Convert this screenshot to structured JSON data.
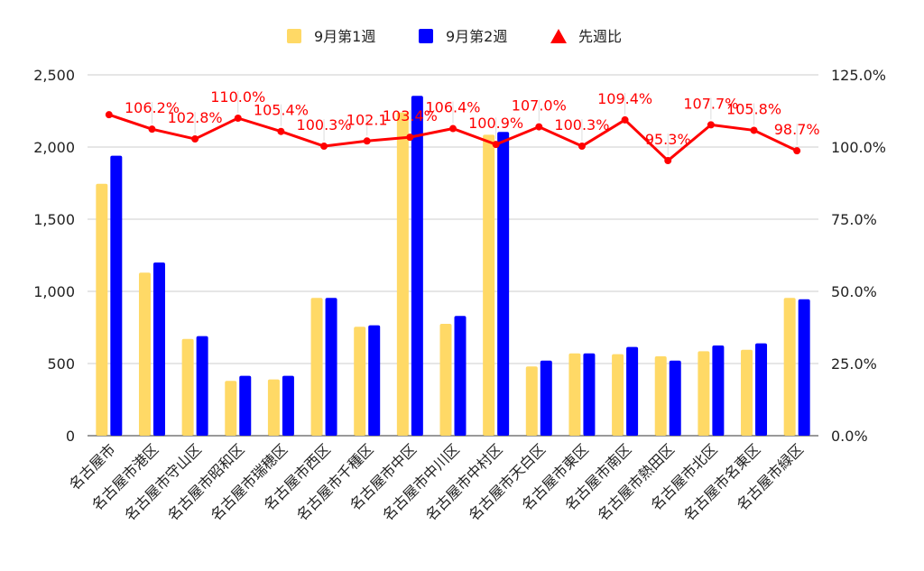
{
  "chart_data": {
    "type": "bar",
    "categories": [
      "名古屋市",
      "名古屋市港区",
      "名古屋市守山区",
      "名古屋市昭和区",
      "名古屋市瑞穂区",
      "名古屋市西区",
      "名古屋市千種区",
      "名古屋市中区",
      "名古屋市中川区",
      "名古屋市中村区",
      "名古屋市天白区",
      "名古屋市東区",
      "名古屋市南区",
      "名古屋市熱田区",
      "名古屋市北区",
      "名古屋市名東区",
      "名古屋市緑区"
    ],
    "series": [
      {
        "name": "9月第1週",
        "kind": "bar",
        "axis": "left",
        "color": "#ffd966",
        "values": [
          1745,
          1130,
          670,
          380,
          390,
          955,
          755,
          2240,
          775,
          2085,
          480,
          570,
          565,
          550,
          585,
          595,
          955
        ]
      },
      {
        "name": "9月第2週",
        "kind": "bar",
        "axis": "left",
        "color": "#0000ff",
        "values": [
          1940,
          1200,
          690,
          415,
          415,
          955,
          765,
          2355,
          830,
          2105,
          520,
          570,
          615,
          520,
          625,
          640,
          945
        ]
      },
      {
        "name": "先週比",
        "kind": "line",
        "axis": "right",
        "color": "#ff0000",
        "values": [
          111.2,
          106.2,
          102.8,
          110.0,
          105.4,
          100.3,
          102.1,
          103.4,
          106.4,
          100.9,
          107.0,
          100.3,
          109.4,
          95.3,
          107.7,
          105.8,
          98.7
        ],
        "labels": [
          "",
          "106.2%",
          "102.8%",
          "110.0%",
          "105.4%",
          "100.3%",
          "102.1",
          "103.4%",
          "106.4%",
          "100.9%",
          "107.0%",
          "100.3%",
          "109.4%",
          "95.3%",
          "107.7%",
          "105.8%",
          "98.7%"
        ]
      }
    ],
    "y_left": {
      "ticks": [
        "0",
        "500",
        "1,000",
        "1,500",
        "2,000",
        "2,500"
      ],
      "ylim": [
        0,
        2500
      ]
    },
    "y_right": {
      "ticks": [
        "0.0%",
        "25.0%",
        "50.0%",
        "75.0%",
        "100.0%",
        "125.0%"
      ],
      "ylim": [
        0,
        125
      ]
    },
    "legend_position": "top-center",
    "grid": true,
    "title": "",
    "xlabel": "",
    "ylabel": ""
  }
}
